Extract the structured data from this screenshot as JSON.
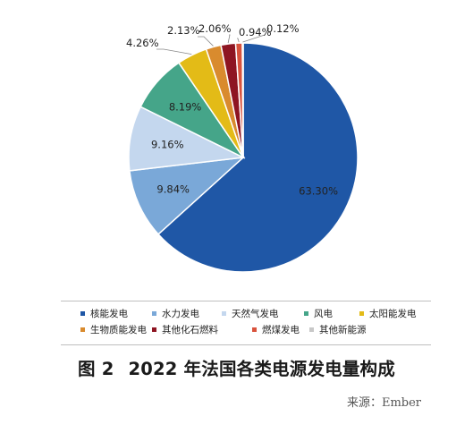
{
  "chart_data": {
    "type": "pie",
    "series": [
      {
        "label": "核能发电",
        "value": 63.3,
        "display": "63.30%",
        "color": "#1f57a6"
      },
      {
        "label": "水力发电",
        "value": 9.84,
        "display": "9.84%",
        "color": "#7aa8d8"
      },
      {
        "label": "天然气发电",
        "value": 9.16,
        "display": "9.16%",
        "color": "#c4d7ee"
      },
      {
        "label": "风电",
        "value": 8.19,
        "display": "8.19%",
        "color": "#45a589"
      },
      {
        "label": "太阳能发电",
        "value": 4.26,
        "display": "4.26%",
        "color": "#e3bb17"
      },
      {
        "label": "生物质能发电",
        "value": 2.13,
        "display": "2.13%",
        "color": "#d98b2e"
      },
      {
        "label": "其他化石燃料",
        "value": 2.06,
        "display": "2.06%",
        "color": "#8e1522"
      },
      {
        "label": "燃煤发电",
        "value": 0.94,
        "display": "0.94%",
        "color": "#d9533d"
      },
      {
        "label": "其他新能源",
        "value": 0.12,
        "display": "0.12%",
        "color": "#c8c8c8"
      }
    ],
    "legend_position": "bottom"
  },
  "caption": {
    "figure_number": "图 2",
    "title": "2022 年法国各类电源发电量构成"
  },
  "source": "来源：Ember"
}
